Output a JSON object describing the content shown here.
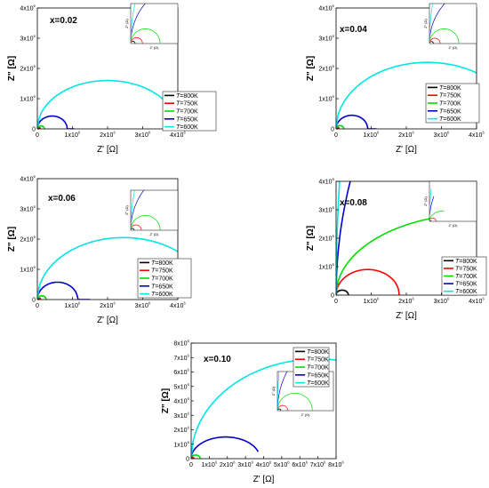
{
  "figure": {
    "panels": [
      {
        "label": "x=0.02",
        "inset": "C"
      },
      {
        "label": "x=0.04",
        "inset": "C"
      },
      {
        "label": "x=0.06",
        "inset": "C"
      },
      {
        "label": "x=0.08",
        "inset": "C"
      },
      {
        "label": "x=0.10",
        "inset": "C"
      }
    ]
  },
  "legend": {
    "italic_prefix": "T",
    "entries": [
      "=800K",
      "=750K",
      "=700K",
      "=650K",
      "=600K"
    ],
    "colors": [
      "#000000",
      "#ff0000",
      "#00dd00",
      "#0000cc",
      "#00e5e5"
    ]
  },
  "axes": {
    "xlabel": "Z' [Ω]",
    "ylabel": "Z\" [Ω]",
    "inset_xlabel": "Z' (Ω)",
    "inset_ylabel": "Z\" (Ω)"
  },
  "chart_data": [
    {
      "type": "line",
      "title": "x=0.02",
      "xlabel": "Z' [Ω]",
      "ylabel": "Z\" [Ω]",
      "xlim": [
        0,
        4000000
      ],
      "ylim": [
        0,
        4000000
      ],
      "xticks": [
        "0",
        "1x10⁶",
        "2x10⁶",
        "3x10⁶",
        "4x10⁶"
      ],
      "yticks": [
        "0",
        "1x10⁶",
        "2x10⁶",
        "3x10⁶",
        "4x10⁶"
      ],
      "legend": "lower-right",
      "series": [
        {
          "name": "T=800K",
          "arcs": [
            {
              "diameter": 30000
            }
          ]
        },
        {
          "name": "T=750K",
          "arcs": [
            {
              "diameter": 80000
            }
          ]
        },
        {
          "name": "T=700K",
          "arcs": [
            {
              "diameter": 200000
            }
          ]
        },
        {
          "name": "T=650K",
          "arcs": [
            {
              "diameter": 850000,
              "end_x": 1050000
            }
          ]
        },
        {
          "name": "T=600K",
          "arcs": [
            {
              "diameter": 4000000,
              "end_x": 4000000,
              "peak": 1600000
            }
          ]
        }
      ]
    },
    {
      "type": "line",
      "title": "x=0.04",
      "xlabel": "Z' [Ω]",
      "ylabel": "Z\" [Ω]",
      "xlim": [
        0,
        4000000
      ],
      "ylim": [
        0,
        4000000
      ],
      "xticks": [
        "0",
        "1x10⁶",
        "2x10⁶",
        "3x10⁶",
        "4x10⁶"
      ],
      "yticks": [
        "0",
        "1x10⁶",
        "2x10⁶",
        "3x10⁶",
        "4x10⁶"
      ],
      "legend": "lower-right",
      "series": [
        {
          "name": "T=800K",
          "arcs": [
            {
              "diameter": 30000
            }
          ]
        },
        {
          "name": "T=750K",
          "arcs": [
            {
              "diameter": 80000
            }
          ]
        },
        {
          "name": "T=700K",
          "arcs": [
            {
              "diameter": 220000
            }
          ]
        },
        {
          "name": "T=650K",
          "arcs": [
            {
              "diameter": 900000,
              "end_x": 1150000
            }
          ]
        },
        {
          "name": "T=600K",
          "arcs": [
            {
              "diameter": 5200000,
              "end_x": 4000000,
              "peak": 2200000
            }
          ]
        }
      ]
    },
    {
      "type": "line",
      "title": "x=0.06",
      "xlabel": "Z' [Ω]",
      "ylabel": "Z\" [Ω]",
      "xlim": [
        0,
        4000000
      ],
      "ylim": [
        0,
        4000000
      ],
      "xticks": [
        "0",
        "1x10⁶",
        "2x10⁶",
        "3x10⁶",
        "4x10⁶"
      ],
      "yticks": [
        "0",
        "1x10⁶",
        "2x10⁶",
        "3x10⁶",
        "4x10⁶"
      ],
      "legend": "lower-right",
      "series": [
        {
          "name": "T=800K",
          "arcs": [
            {
              "diameter": 30000
            }
          ]
        },
        {
          "name": "T=750K",
          "arcs": [
            {
              "diameter": 90000
            }
          ]
        },
        {
          "name": "T=700K",
          "arcs": [
            {
              "diameter": 250000
            }
          ]
        },
        {
          "name": "T=650K",
          "arcs": [
            {
              "diameter": 1150000,
              "end_x": 1500000
            }
          ]
        },
        {
          "name": "T=600K",
          "arcs": [
            {
              "diameter": 4900000,
              "end_x": 4000000,
              "peak": 2050000
            }
          ]
        }
      ]
    },
    {
      "type": "line",
      "title": "x=0.08",
      "xlabel": "Z' [Ω]",
      "ylabel": "Z\" [Ω]",
      "xlim": [
        0,
        4000000
      ],
      "ylim": [
        0,
        4000000
      ],
      "xticks": [
        "0",
        "1x10⁶",
        "2x10⁶",
        "3x10⁶",
        "4x10⁶"
      ],
      "yticks": [
        "0",
        "1x10⁶",
        "2x10⁶",
        "3x10⁶",
        "4x10⁶"
      ],
      "legend": "lower-right",
      "series": [
        {
          "name": "T=800K",
          "arcs": [
            {
              "diameter": 350000
            }
          ]
        },
        {
          "name": "T=750K",
          "arcs": [
            {
              "diameter": 1800000
            }
          ]
        },
        {
          "name": "T=700K",
          "arcs": [
            {
              "diameter": 8000000,
              "end_x": 4000000,
              "peak": 2850000
            }
          ]
        },
        {
          "name": "T=650K",
          "arcs": [
            {
              "diameter": 40000000,
              "end_x": 1200000
            }
          ]
        },
        {
          "name": "T=600K",
          "arcs": [
            {
              "diameter": 160000000,
              "end_x": 500000
            }
          ]
        }
      ]
    },
    {
      "type": "line",
      "title": "x=0.10",
      "xlabel": "Z' [Ω]",
      "ylabel": "Z\" [Ω]",
      "xlim": [
        0,
        8000000
      ],
      "ylim": [
        0,
        8000000
      ],
      "xticks": [
        "0",
        "1x10⁶",
        "2x10⁶",
        "3x10⁶",
        "4x10⁶",
        "5x10⁶",
        "6x10⁶",
        "7x10⁶",
        "8x10⁶"
      ],
      "yticks": [
        "0",
        "1x10⁶",
        "2x10⁶",
        "3x10⁶",
        "4x10⁶",
        "5x10⁶",
        "6x10⁶",
        "7x10⁶",
        "8x10⁶"
      ],
      "legend": "upper-center",
      "series": [
        {
          "name": "T=800K",
          "arcs": [
            {
              "diameter": 50000
            }
          ]
        },
        {
          "name": "T=750K",
          "arcs": [
            {
              "diameter": 150000
            }
          ]
        },
        {
          "name": "T=700K",
          "arcs": [
            {
              "diameter": 500000
            }
          ]
        },
        {
          "name": "T=650K",
          "arcs": [
            {
              "diameter": 3800000,
              "end_x": 3700000,
              "peak": 1500000
            }
          ]
        },
        {
          "name": "T=600K",
          "arcs": [
            {
              "diameter": 14000000,
              "end_x": 8000000,
              "peak": 6900000
            }
          ]
        }
      ]
    }
  ]
}
